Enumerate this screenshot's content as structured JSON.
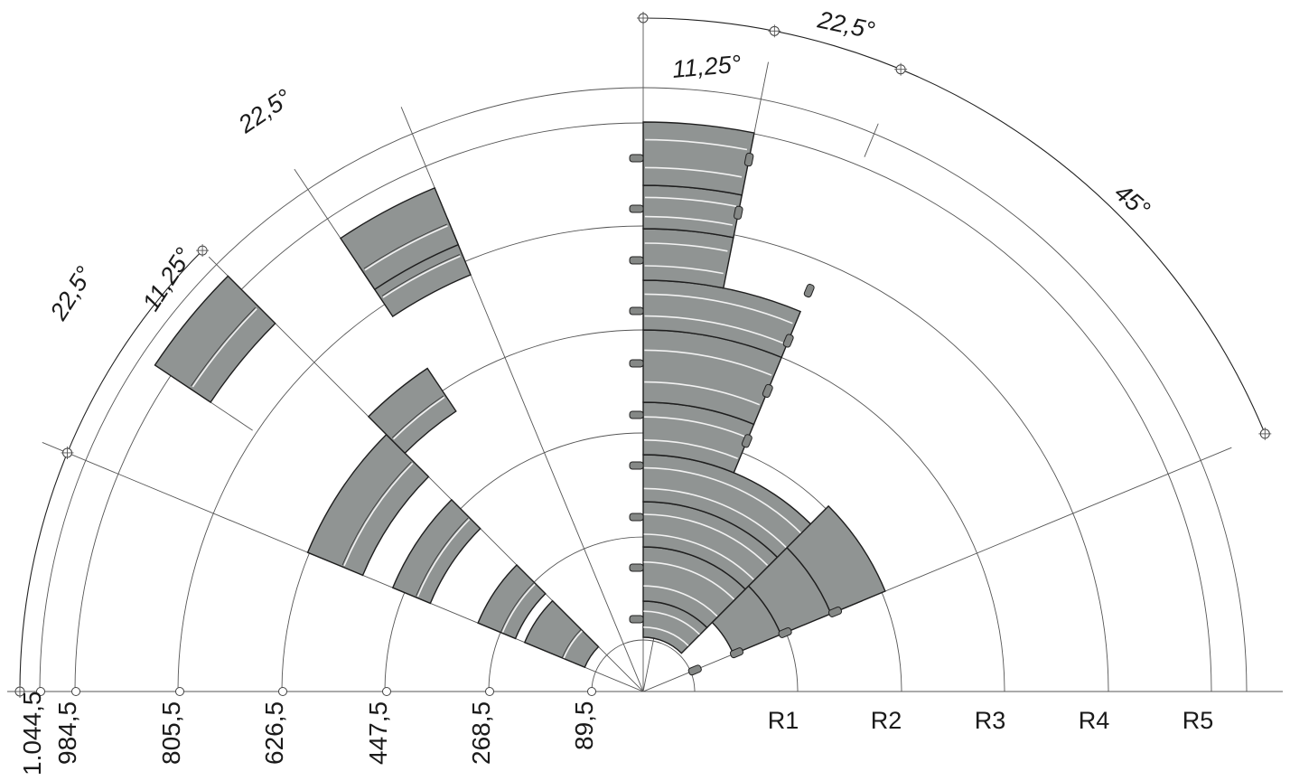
{
  "radius_labels": [
    "R1",
    "R2",
    "R3",
    "R4",
    "R5"
  ],
  "distance_labels": [
    "1.044,5",
    "984,5",
    "805,5",
    "626,5",
    "447,5",
    "268,5",
    "89,5"
  ],
  "angle_labels": {
    "top_right_22_5": "22,5°",
    "top_right_11_25": "11,25°",
    "right_45": "45°",
    "left_upper_22_5": "22,5°",
    "left_lower_22_5": "22,5°",
    "left_11_25": "11,25°"
  },
  "colors": {
    "track_fill": "#909493",
    "outline": "#1e1e1e",
    "guide_line": "#555555"
  }
}
